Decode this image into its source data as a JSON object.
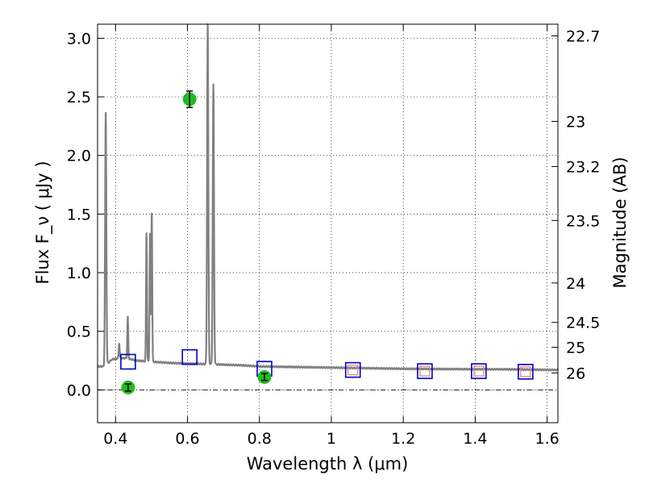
{
  "chart_data": {
    "type": "line",
    "xlabel": "Wavelength  λ (μm)",
    "ylabel": "Flux  F_ν  ( μJy )",
    "ylabel_right": "Magnitude (AB)",
    "xlim": [
      0.35,
      1.63
    ],
    "ylim": [
      -0.28,
      3.12
    ],
    "grid": true,
    "x_ticks": [
      0.4,
      0.6,
      0.8,
      1,
      1.2,
      1.4,
      1.6
    ],
    "x_tick_labels": [
      "0.4",
      "0.6",
      "0.8",
      "1",
      "1.2",
      "1.4",
      "1.6"
    ],
    "y_ticks": [
      0.0,
      0.5,
      1.0,
      1.5,
      2.0,
      2.5,
      3.0
    ],
    "y_tick_labels": [
      "0.0",
      "0.5",
      "1.0",
      "1.5",
      "2.0",
      "2.5",
      "3.0"
    ],
    "right_ticks": [
      {
        "label": "22.7",
        "mag": 22.7
      },
      {
        "label": "23",
        "mag": 23
      },
      {
        "label": "23.2",
        "mag": 23.2
      },
      {
        "label": "23.5",
        "mag": 23.5
      },
      {
        "label": "24",
        "mag": 24
      },
      {
        "label": "24.5",
        "mag": 24.5
      },
      {
        "label": "25",
        "mag": 25
      },
      {
        "label": "26",
        "mag": 26
      }
    ],
    "colors": {
      "spectrum": "#808080",
      "model_box": "#0000cc",
      "model_box_inner": "#e08080",
      "observed": "#22bb22",
      "zero_line": "#000000"
    },
    "spectrum": {
      "continuum": [
        [
          0.35,
          0.2
        ],
        [
          0.37,
          0.2
        ],
        [
          0.39,
          0.26
        ],
        [
          0.41,
          0.27
        ],
        [
          0.43,
          0.27
        ],
        [
          0.46,
          0.25
        ],
        [
          0.5,
          0.24
        ],
        [
          0.55,
          0.23
        ],
        [
          0.6,
          0.225
        ],
        [
          0.65,
          0.22
        ],
        [
          0.7,
          0.215
        ],
        [
          0.75,
          0.21
        ],
        [
          0.8,
          0.2
        ],
        [
          0.9,
          0.195
        ],
        [
          1.0,
          0.19
        ],
        [
          1.1,
          0.185
        ],
        [
          1.2,
          0.18
        ],
        [
          1.3,
          0.178
        ],
        [
          1.4,
          0.176
        ],
        [
          1.5,
          0.175
        ],
        [
          1.63,
          0.17
        ]
      ],
      "emission_lines": [
        {
          "x": 0.3727,
          "peak": 2.36,
          "width": 0.004
        },
        {
          "x": 0.4101,
          "peak": 0.4,
          "width": 0.003
        },
        {
          "x": 0.434,
          "peak": 0.62,
          "width": 0.003
        },
        {
          "x": 0.4861,
          "peak": 1.34,
          "width": 0.003
        },
        {
          "x": 0.4959,
          "peak": 1.33,
          "width": 0.003
        },
        {
          "x": 0.5007,
          "peak": 1.51,
          "width": 0.003
        },
        {
          "x": 0.6563,
          "peak": 3.12,
          "width": 0.004
        },
        {
          "x": 0.672,
          "peak": 2.6,
          "width": 0.004
        }
      ]
    },
    "model_points": [
      {
        "x": 0.435,
        "y": 0.24
      },
      {
        "x": 0.606,
        "y": 0.28
      },
      {
        "x": 0.814,
        "y": 0.18
      },
      {
        "x": 1.06,
        "y": 0.17
      },
      {
        "x": 1.26,
        "y": 0.16
      },
      {
        "x": 1.41,
        "y": 0.16
      },
      {
        "x": 1.54,
        "y": 0.155
      }
    ],
    "observed_points": [
      {
        "x": 0.435,
        "y": 0.02,
        "err": 0.03
      },
      {
        "x": 0.606,
        "y": 2.48,
        "err": 0.07
      },
      {
        "x": 0.814,
        "y": 0.11,
        "err": 0.03
      }
    ]
  }
}
